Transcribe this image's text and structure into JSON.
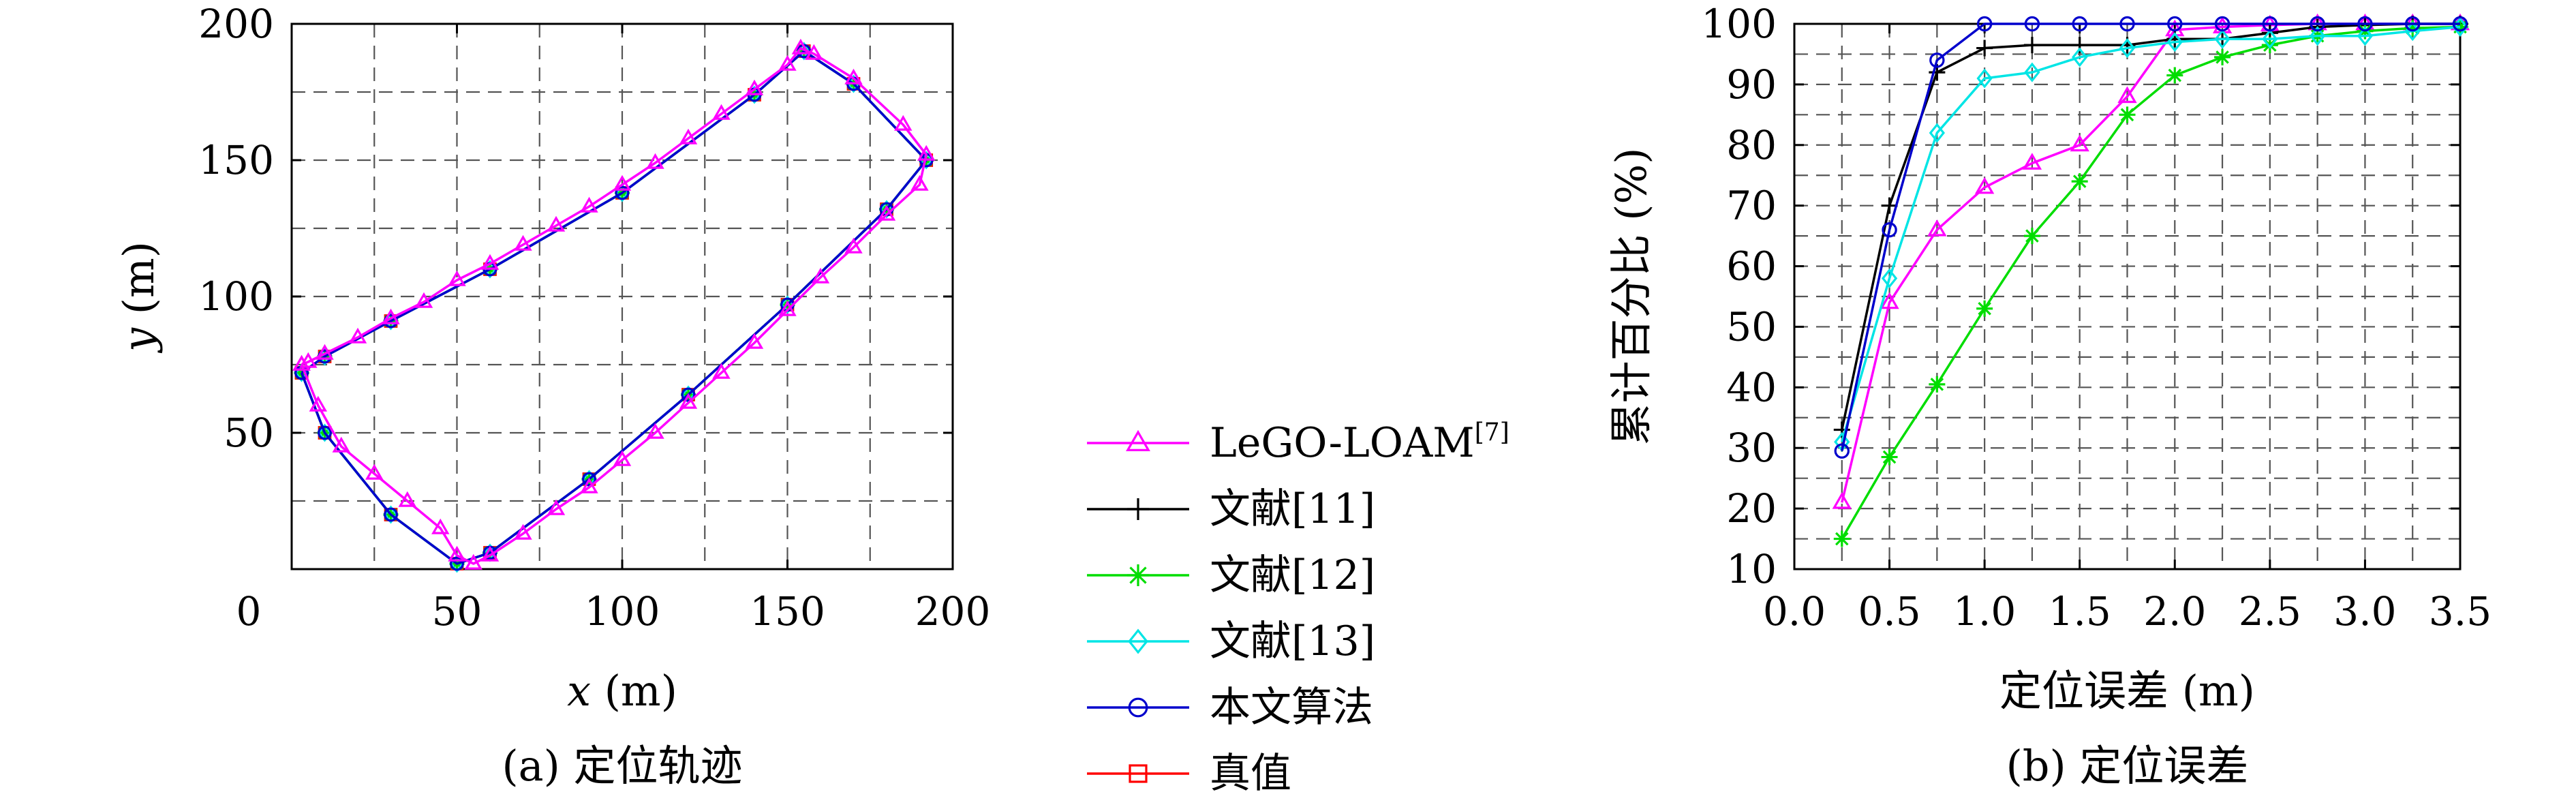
{
  "chart_data": [
    {
      "type": "line",
      "caption": "(a) 定位轨迹",
      "xlabel_var": "x",
      "xlabel_unit": " (m)",
      "ylabel_var": "y",
      "ylabel_unit": " (m)",
      "xlim": [
        0,
        200
      ],
      "ylim": [
        0,
        200
      ],
      "x_ticks": [
        "0",
        "50",
        "100",
        "150",
        "200"
      ],
      "y_ticks": [
        "50",
        "100",
        "150",
        "200"
      ],
      "grid": true,
      "series": [
        {
          "name": "LeGO-LOAM",
          "color": "#ff00ff",
          "marker": "triangle",
          "x": [
            3,
            5,
            10,
            20,
            30,
            40,
            50,
            60,
            70,
            80,
            90,
            100,
            110,
            120,
            130,
            140,
            150,
            154,
            158,
            170,
            185,
            192,
            190,
            180,
            170,
            160,
            150,
            140,
            130,
            120,
            110,
            100,
            90,
            80,
            70,
            60,
            55,
            50,
            45,
            35,
            25,
            15,
            8,
            3
          ],
          "y": [
            75,
            76,
            79,
            85,
            92,
            98,
            106,
            112,
            119,
            126,
            133,
            141,
            149,
            158,
            167,
            176,
            185,
            191,
            189,
            180,
            163,
            152,
            141,
            130,
            118,
            107,
            95,
            83,
            72,
            61,
            50,
            40,
            30,
            22,
            13,
            5,
            2,
            5,
            15,
            25,
            35,
            45,
            60,
            75
          ]
        },
        {
          "name": "文献[11]",
          "color": "#000000",
          "marker": "plus",
          "x": [
            3,
            10,
            30,
            60,
            100,
            140,
            155,
            170,
            192,
            180,
            150,
            120,
            90,
            60,
            50,
            30,
            10,
            3
          ],
          "y": [
            72,
            78,
            91,
            110,
            138,
            174,
            190,
            178,
            150,
            132,
            97,
            64,
            33,
            6,
            2,
            20,
            50,
            72
          ]
        },
        {
          "name": "文献[12]",
          "color": "#00dd00",
          "marker": "asterisk",
          "x": [
            3,
            10,
            30,
            60,
            100,
            140,
            155,
            170,
            192,
            180,
            150,
            120,
            90,
            60,
            50,
            30,
            10,
            3
          ],
          "y": [
            72,
            78,
            91,
            110,
            138,
            174,
            190,
            178,
            150,
            132,
            97,
            64,
            33,
            6,
            2,
            20,
            50,
            72
          ]
        },
        {
          "name": "文献[13]",
          "color": "#00e5e5",
          "marker": "diamond",
          "x": [
            3,
            10,
            30,
            60,
            100,
            140,
            155,
            170,
            192,
            180,
            150,
            120,
            90,
            60,
            50,
            30,
            10,
            3
          ],
          "y": [
            72,
            78,
            91,
            110,
            138,
            174,
            190,
            178,
            150,
            132,
            97,
            64,
            33,
            6,
            2,
            20,
            50,
            72
          ]
        },
        {
          "name": "本文算法",
          "color": "#0000cc",
          "marker": "circle",
          "x": [
            3,
            10,
            30,
            60,
            100,
            140,
            155,
            170,
            192,
            180,
            150,
            120,
            90,
            60,
            50,
            30,
            10,
            3
          ],
          "y": [
            72,
            78,
            91,
            110,
            138,
            174,
            190,
            178,
            150,
            132,
            97,
            64,
            33,
            6,
            2,
            20,
            50,
            72
          ]
        },
        {
          "name": "真值",
          "color": "#ff0000",
          "marker": "square",
          "x": [
            3,
            10,
            30,
            60,
            100,
            140,
            155,
            170,
            192,
            180,
            150,
            120,
            90,
            60,
            50,
            30,
            10,
            3
          ],
          "y": [
            72,
            78,
            91,
            110,
            138,
            174,
            190,
            178,
            150,
            132,
            97,
            64,
            33,
            6,
            2,
            20,
            50,
            72
          ]
        }
      ]
    },
    {
      "type": "line",
      "caption": "(b) 定位误差",
      "xlabel": "定位误差 (m)",
      "ylabel": "累计百分比 (%)",
      "xlim": [
        0,
        3.5
      ],
      "ylim": [
        10,
        100
      ],
      "x_ticks": [
        "0.0",
        "0.5",
        "1.0",
        "1.5",
        "2.0",
        "2.5",
        "3.0",
        "3.5"
      ],
      "y_ticks": [
        "10",
        "20",
        "30",
        "40",
        "50",
        "60",
        "70",
        "80",
        "90",
        "100"
      ],
      "grid": true,
      "x": [
        0.25,
        0.5,
        0.75,
        1.0,
        1.25,
        1.5,
        1.75,
        2.0,
        2.25,
        2.5,
        2.75,
        3.0,
        3.25,
        3.5
      ],
      "series": [
        {
          "name": "LeGO-LOAM",
          "color": "#ff00ff",
          "marker": "triangle",
          "values": [
            21,
            54,
            66,
            73,
            77,
            80,
            88,
            99,
            99.5,
            99.8,
            100,
            100,
            100,
            100
          ]
        },
        {
          "name": "文献[11]",
          "color": "#000000",
          "marker": "plus",
          "values": [
            33,
            70,
            92,
            96,
            96.5,
            96.5,
            96.5,
            97.5,
            97.5,
            98.5,
            99.5,
            99.8,
            100,
            100
          ]
        },
        {
          "name": "文献[12]",
          "color": "#00dd00",
          "marker": "asterisk",
          "values": [
            15,
            28.5,
            40.5,
            53,
            65,
            74,
            85,
            91.5,
            94.5,
            96.5,
            98,
            98.8,
            99.3,
            99.5
          ]
        },
        {
          "name": "文献[13]",
          "color": "#00e5e5",
          "marker": "diamond",
          "values": [
            31,
            58,
            82,
            91,
            92,
            94.5,
            96,
            97,
            97.5,
            97.5,
            98,
            98,
            98.8,
            99.5
          ]
        },
        {
          "name": "本文算法",
          "color": "#0000cc",
          "marker": "circle",
          "values": [
            29.5,
            66,
            94,
            100,
            100,
            100,
            100,
            100,
            100,
            100,
            100,
            100,
            100,
            100
          ]
        }
      ]
    }
  ],
  "legend": {
    "items": [
      {
        "label": "LeGO-LOAM",
        "sup": "[7]",
        "color": "#ff00ff",
        "marker": "triangle"
      },
      {
        "label": "文献[11]",
        "sup": "",
        "color": "#000000",
        "marker": "plus"
      },
      {
        "label": "文献[12]",
        "sup": "",
        "color": "#00dd00",
        "marker": "asterisk"
      },
      {
        "label": "文献[13]",
        "sup": "",
        "color": "#00e5e5",
        "marker": "diamond"
      },
      {
        "label": "本文算法",
        "sup": "",
        "color": "#0000cc",
        "marker": "circle"
      },
      {
        "label": "真值",
        "sup": "",
        "color": "#ff0000",
        "marker": "square"
      }
    ]
  }
}
